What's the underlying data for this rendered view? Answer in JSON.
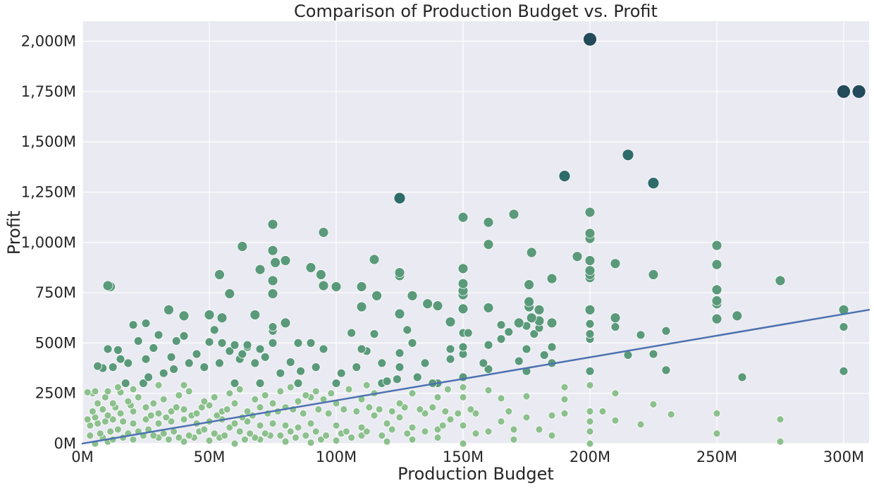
{
  "chart_data": {
    "type": "scatter",
    "title": "Comparison of Production Budget vs. Profit",
    "xlabel": "Production Budget",
    "ylabel": "Profit",
    "xlim": [
      0,
      310
    ],
    "ylim": [
      0,
      2100
    ],
    "value_units": "millions",
    "x_ticks": [
      0,
      50,
      100,
      150,
      200,
      250,
      300
    ],
    "x_tick_labels": [
      "0M",
      "50M",
      "100M",
      "150M",
      "200M",
      "250M",
      "300M"
    ],
    "y_ticks": [
      0,
      250,
      500,
      750,
      1000,
      1250,
      1500,
      1750,
      2000
    ],
    "y_tick_labels": [
      "0M",
      "250M",
      "500M",
      "750M",
      "1,000M",
      "1,250M",
      "1,500M",
      "1,750M",
      "2,000M"
    ],
    "grid": true,
    "legend": "none",
    "colors": {
      "background": "#eaeaf2",
      "low": "#8cc08d",
      "mid": "#5a9a7a",
      "high": "#2e6b6b",
      "top": "#234a5a",
      "regression_line": "#4c72b0",
      "marker_edge": "#ffffff"
    },
    "regression_line": {
      "x": [
        0,
        310
      ],
      "y": [
        0,
        665
      ]
    },
    "points": [
      [
        200,
        2010
      ],
      [
        300,
        1750
      ],
      [
        306,
        1750
      ],
      [
        215,
        1435
      ],
      [
        190,
        1330
      ],
      [
        225,
        1295
      ],
      [
        125,
        1220
      ],
      [
        170,
        1140
      ],
      [
        150,
        1125
      ],
      [
        160,
        1100
      ],
      [
        200,
        1150
      ],
      [
        75,
        1090
      ],
      [
        95,
        1050
      ],
      [
        200,
        1045
      ],
      [
        200,
        1020
      ],
      [
        63,
        980
      ],
      [
        160,
        990
      ],
      [
        250,
        985
      ],
      [
        75,
        960
      ],
      [
        177,
        950
      ],
      [
        195,
        930
      ],
      [
        115,
        915
      ],
      [
        200,
        910
      ],
      [
        80,
        910
      ],
      [
        76,
        900
      ],
      [
        210,
        895
      ],
      [
        250,
        890
      ],
      [
        90,
        875
      ],
      [
        150,
        870
      ],
      [
        70,
        865
      ],
      [
        200,
        860
      ],
      [
        125,
        850
      ],
      [
        54,
        840
      ],
      [
        94,
        840
      ],
      [
        225,
        840
      ],
      [
        200,
        840
      ],
      [
        125,
        835
      ],
      [
        200,
        825
      ],
      [
        185,
        820
      ],
      [
        275,
        810
      ],
      [
        75,
        810
      ],
      [
        150,
        795
      ],
      [
        176,
        790
      ],
      [
        95,
        785
      ],
      [
        10,
        785
      ],
      [
        11,
        780
      ],
      [
        100,
        780
      ],
      [
        110,
        780
      ],
      [
        150,
        760
      ],
      [
        58,
        745
      ],
      [
        75,
        745
      ],
      [
        150,
        740
      ],
      [
        130,
        735
      ],
      [
        116,
        735
      ],
      [
        250,
        765
      ],
      [
        176,
        705
      ],
      [
        250,
        710
      ],
      [
        250,
        695
      ],
      [
        136,
        695
      ],
      [
        140,
        685
      ],
      [
        110,
        680
      ],
      [
        160,
        675
      ],
      [
        180,
        665
      ],
      [
        200,
        665
      ],
      [
        300,
        665
      ],
      [
        34,
        665
      ],
      [
        150,
        670
      ],
      [
        176,
        680
      ],
      [
        125,
        645
      ],
      [
        68,
        640
      ],
      [
        210,
        625
      ],
      [
        250,
        620
      ],
      [
        258,
        635
      ],
      [
        177,
        625
      ],
      [
        172,
        600
      ],
      [
        50,
        640
      ],
      [
        180,
        610
      ],
      [
        200,
        595
      ],
      [
        80,
        600
      ],
      [
        20,
        590
      ],
      [
        25,
        598
      ],
      [
        55,
        625
      ],
      [
        145,
        605
      ],
      [
        165,
        590
      ],
      [
        175,
        585
      ],
      [
        185,
        600
      ],
      [
        230,
        560
      ],
      [
        128,
        565
      ],
      [
        220,
        540
      ],
      [
        200,
        545
      ],
      [
        300,
        580
      ],
      [
        210,
        580
      ],
      [
        180,
        575
      ],
      [
        160,
        490
      ],
      [
        30,
        540
      ],
      [
        40,
        535
      ],
      [
        75,
        580
      ],
      [
        52,
        565
      ],
      [
        75,
        560
      ],
      [
        60,
        490
      ],
      [
        65,
        490
      ],
      [
        150,
        550
      ],
      [
        168,
        555
      ],
      [
        145,
        470
      ],
      [
        152,
        550
      ],
      [
        178,
        545
      ],
      [
        115,
        545
      ],
      [
        106,
        550
      ],
      [
        40,
        635
      ],
      [
        10,
        470
      ],
      [
        14,
        465
      ],
      [
        28,
        475
      ],
      [
        22,
        510
      ],
      [
        37,
        510
      ],
      [
        50,
        505
      ],
      [
        55,
        500
      ],
      [
        65,
        480
      ],
      [
        70,
        470
      ],
      [
        75,
        500
      ],
      [
        85,
        500
      ],
      [
        90,
        500
      ],
      [
        110,
        470
      ],
      [
        130,
        500
      ],
      [
        150,
        480
      ],
      [
        165,
        520
      ],
      [
        175,
        470
      ],
      [
        185,
        480
      ],
      [
        200,
        520
      ],
      [
        215,
        440
      ],
      [
        225,
        445
      ],
      [
        182,
        440
      ],
      [
        150,
        445
      ],
      [
        125,
        450
      ],
      [
        112,
        460
      ],
      [
        95,
        470
      ],
      [
        82,
        405
      ],
      [
        63,
        445
      ],
      [
        58,
        460
      ],
      [
        45,
        445
      ],
      [
        35,
        430
      ],
      [
        25,
        420
      ],
      [
        15,
        420
      ],
      [
        18,
        400
      ],
      [
        12,
        380
      ],
      [
        6,
        385
      ],
      [
        8,
        375
      ],
      [
        2,
        255
      ],
      [
        4,
        250
      ],
      [
        5,
        260
      ],
      [
        10,
        260
      ],
      [
        15,
        255
      ],
      [
        20,
        270
      ],
      [
        30,
        290
      ],
      [
        40,
        290
      ],
      [
        60,
        300
      ],
      [
        70,
        300
      ],
      [
        85,
        300
      ],
      [
        100,
        300
      ],
      [
        120,
        310
      ],
      [
        140,
        300
      ],
      [
        160,
        370
      ],
      [
        175,
        360
      ],
      [
        185,
        400
      ],
      [
        200,
        360
      ],
      [
        210,
        250
      ],
      [
        230,
        365
      ],
      [
        260,
        330
      ],
      [
        300,
        360
      ],
      [
        200,
        290
      ],
      [
        200,
        160
      ],
      [
        190,
        280
      ],
      [
        190,
        220
      ],
      [
        175,
        235
      ],
      [
        165,
        225
      ],
      [
        160,
        265
      ],
      [
        150,
        330
      ],
      [
        150,
        280
      ],
      [
        150,
        230
      ],
      [
        140,
        230
      ],
      [
        130,
        250
      ],
      [
        125,
        200
      ],
      [
        115,
        250
      ],
      [
        110,
        220
      ],
      [
        100,
        200
      ],
      [
        95,
        220
      ],
      [
        90,
        230
      ],
      [
        85,
        210
      ],
      [
        80,
        180
      ],
      [
        75,
        200
      ],
      [
        70,
        180
      ],
      [
        65,
        160
      ],
      [
        60,
        200
      ],
      [
        55,
        160
      ],
      [
        50,
        190
      ],
      [
        45,
        150
      ],
      [
        40,
        170
      ],
      [
        35,
        160
      ],
      [
        30,
        150
      ],
      [
        25,
        180
      ],
      [
        20,
        160
      ],
      [
        15,
        150
      ],
      [
        10,
        140
      ],
      [
        5,
        130
      ],
      [
        2,
        120
      ],
      [
        3,
        90
      ],
      [
        6,
        100
      ],
      [
        9,
        110
      ],
      [
        12,
        120
      ],
      [
        16,
        110
      ],
      [
        20,
        100
      ],
      [
        25,
        120
      ],
      [
        30,
        100
      ],
      [
        35,
        110
      ],
      [
        40,
        120
      ],
      [
        45,
        100
      ],
      [
        50,
        110
      ],
      [
        55,
        120
      ],
      [
        60,
        100
      ],
      [
        65,
        110
      ],
      [
        70,
        90
      ],
      [
        75,
        100
      ],
      [
        80,
        90
      ],
      [
        85,
        80
      ],
      [
        90,
        100
      ],
      [
        100,
        90
      ],
      [
        110,
        80
      ],
      [
        120,
        100
      ],
      [
        130,
        80
      ],
      [
        140,
        70
      ],
      [
        150,
        90
      ],
      [
        160,
        60
      ],
      [
        170,
        70
      ],
      [
        175,
        130
      ],
      [
        180,
        70
      ],
      [
        185,
        140
      ],
      [
        190,
        150
      ],
      [
        205,
        160
      ],
      [
        220,
        95
      ],
      [
        225,
        195
      ],
      [
        232,
        145
      ],
      [
        250,
        150
      ],
      [
        275,
        120
      ],
      [
        200,
        110
      ],
      [
        210,
        115
      ],
      [
        250,
        50
      ],
      [
        275,
        10
      ],
      [
        200,
        0
      ],
      [
        200,
        60
      ],
      [
        185,
        40
      ],
      [
        170,
        20
      ],
      [
        165,
        110
      ],
      [
        150,
        0
      ],
      [
        140,
        30
      ],
      [
        130,
        20
      ],
      [
        120,
        10
      ],
      [
        110,
        40
      ],
      [
        100,
        15
      ],
      [
        90,
        5
      ],
      [
        80,
        10
      ],
      [
        70,
        20
      ],
      [
        60,
        0
      ],
      [
        50,
        15
      ],
      [
        40,
        10
      ],
      [
        30,
        30
      ],
      [
        20,
        20
      ],
      [
        10,
        10
      ],
      [
        5,
        0
      ],
      [
        3,
        40
      ],
      [
        7,
        50
      ],
      [
        11,
        60
      ],
      [
        14,
        70
      ],
      [
        18,
        50
      ],
      [
        22,
        60
      ],
      [
        26,
        70
      ],
      [
        28,
        40
      ],
      [
        32,
        50
      ],
      [
        36,
        60
      ],
      [
        38,
        30
      ],
      [
        42,
        40
      ],
      [
        46,
        60
      ],
      [
        48,
        70
      ],
      [
        52,
        50
      ],
      [
        56,
        40
      ],
      [
        58,
        80
      ],
      [
        62,
        60
      ],
      [
        66,
        50
      ],
      [
        68,
        30
      ],
      [
        72,
        50
      ],
      [
        78,
        40
      ],
      [
        82,
        60
      ],
      [
        88,
        40
      ],
      [
        92,
        60
      ],
      [
        96,
        40
      ],
      [
        102,
        50
      ],
      [
        106,
        30
      ],
      [
        112,
        60
      ],
      [
        118,
        40
      ],
      [
        122,
        70
      ],
      [
        128,
        50
      ],
      [
        135,
        60
      ],
      [
        142,
        90
      ],
      [
        155,
        50
      ],
      [
        168,
        160
      ],
      [
        8,
        30
      ],
      [
        12,
        20
      ],
      [
        16,
        30
      ],
      [
        24,
        40
      ],
      [
        34,
        20
      ],
      [
        44,
        30
      ],
      [
        54,
        30
      ],
      [
        64,
        20
      ],
      [
        74,
        40
      ],
      [
        84,
        30
      ],
      [
        94,
        20
      ],
      [
        104,
        60
      ],
      [
        115,
        140
      ],
      [
        125,
        130
      ],
      [
        135,
        150
      ],
      [
        145,
        120
      ],
      [
        155,
        150
      ],
      [
        12,
        200
      ],
      [
        18,
        210
      ],
      [
        22,
        230
      ],
      [
        28,
        200
      ],
      [
        32,
        220
      ],
      [
        38,
        240
      ],
      [
        42,
        260
      ],
      [
        48,
        210
      ],
      [
        52,
        230
      ],
      [
        58,
        250
      ],
      [
        62,
        270
      ],
      [
        68,
        220
      ],
      [
        72,
        240
      ],
      [
        78,
        260
      ],
      [
        82,
        280
      ],
      [
        88,
        240
      ],
      [
        92,
        260
      ],
      [
        98,
        250
      ],
      [
        105,
        270
      ],
      [
        112,
        290
      ],
      [
        118,
        300
      ],
      [
        124,
        320
      ],
      [
        132,
        330
      ],
      [
        138,
        300
      ],
      [
        144,
        270
      ],
      [
        6,
        200
      ],
      [
        9,
        230
      ],
      [
        14,
        280
      ],
      [
        17,
        300
      ],
      [
        24,
        300
      ],
      [
        26,
        330
      ],
      [
        32,
        350
      ],
      [
        36,
        370
      ],
      [
        42,
        400
      ],
      [
        48,
        380
      ],
      [
        54,
        400
      ],
      [
        62,
        420
      ],
      [
        68,
        400
      ],
      [
        72,
        430
      ],
      [
        78,
        350
      ],
      [
        86,
        360
      ],
      [
        92,
        380
      ],
      [
        102,
        350
      ],
      [
        108,
        380
      ],
      [
        118,
        400
      ],
      [
        125,
        380
      ],
      [
        135,
        400
      ],
      [
        145,
        420
      ],
      [
        158,
        400
      ],
      [
        172,
        410
      ],
      [
        4,
        160
      ],
      [
        8,
        170
      ],
      [
        13,
        180
      ],
      [
        19,
        190
      ],
      [
        27,
        140
      ],
      [
        33,
        130
      ],
      [
        37,
        180
      ],
      [
        43,
        140
      ],
      [
        47,
        180
      ],
      [
        53,
        140
      ],
      [
        57,
        170
      ],
      [
        63,
        130
      ],
      [
        67,
        140
      ],
      [
        73,
        150
      ],
      [
        77,
        160
      ],
      [
        83,
        170
      ],
      [
        87,
        150
      ],
      [
        93,
        170
      ],
      [
        97,
        150
      ],
      [
        103,
        170
      ],
      [
        108,
        160
      ],
      [
        113,
        180
      ],
      [
        117,
        170
      ],
      [
        122,
        160
      ],
      [
        127,
        180
      ],
      [
        133,
        170
      ],
      [
        138,
        180
      ],
      [
        143,
        160
      ],
      [
        148,
        150
      ],
      [
        153,
        170
      ]
    ]
  }
}
